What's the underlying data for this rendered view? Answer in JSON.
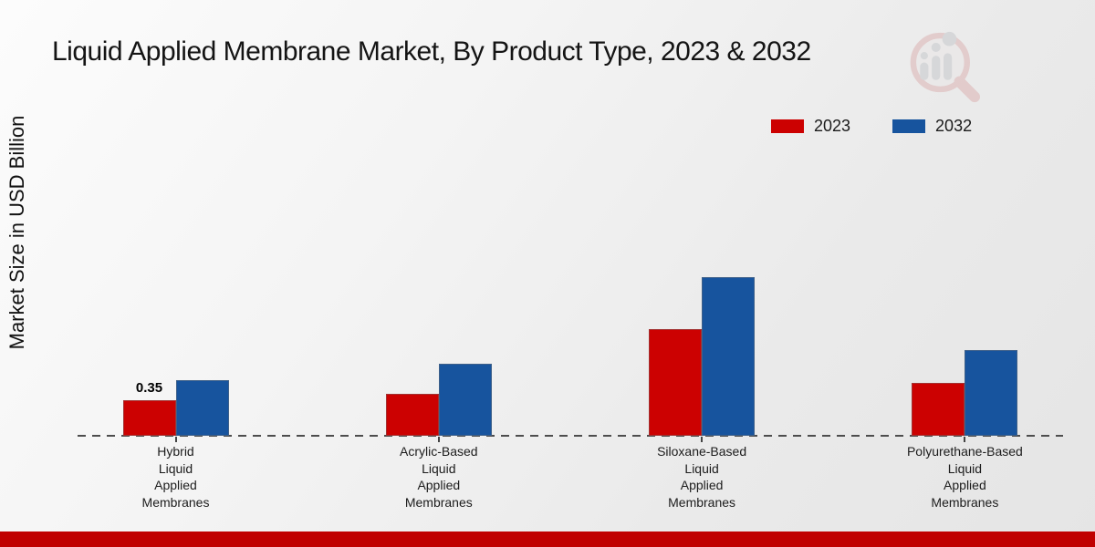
{
  "title": "Liquid Applied Membrane Market, By Product Type, 2023 & 2032",
  "ylabel": "Market Size in USD Billion",
  "legend": {
    "items": [
      {
        "label": "2023",
        "color": "#cc0101"
      },
      {
        "label": "2032",
        "color": "#17549e"
      }
    ]
  },
  "chart_data": {
    "type": "bar",
    "title": "Liquid Applied Membrane Market, By Product Type, 2023 & 2032",
    "xlabel": "",
    "ylabel": "Market Size in USD Billion",
    "categories": [
      "Hybrid\nLiquid\nApplied\nMembranes",
      "Acrylic-Based\nLiquid\nApplied\nMembranes",
      "Siloxane-Based\nLiquid\nApplied\nMembranes",
      "Polyurethane-Based\nLiquid\nApplied\nMembranes"
    ],
    "series": [
      {
        "name": "2023",
        "color": "#cc0101",
        "values": [
          0.35,
          0.41,
          1.05,
          0.52
        ],
        "labels": [
          "0.35",
          null,
          null,
          null
        ]
      },
      {
        "name": "2032",
        "color": "#17549e",
        "values": [
          0.55,
          0.71,
          1.56,
          0.84
        ],
        "labels": [
          null,
          null,
          null,
          null
        ]
      }
    ],
    "ylim": [
      0,
      1.75
    ],
    "grid": false,
    "legend_position": "top-right",
    "x_axis_style": "dashed",
    "unit": "USD Billion"
  },
  "footer": {
    "color": "#c00000"
  },
  "logo": {
    "name": "magnifier-bar-chart-logo"
  }
}
